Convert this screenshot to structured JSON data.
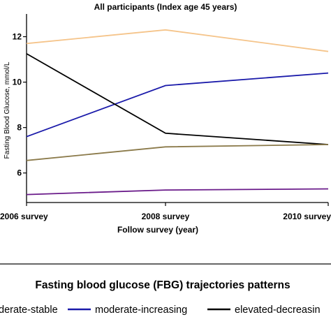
{
  "chart_data": {
    "type": "line",
    "title": "All participants (Index age 45 years)",
    "xlabel": "Follow survey (year)",
    "ylabel": "Fasting Blood Glucose, mmol/L",
    "x": [
      "2006 survey",
      "2008 survey",
      "2010 survey"
    ],
    "ylim": [
      4.7,
      13
    ],
    "yticks": [
      6,
      8,
      10,
      12
    ],
    "grid": false,
    "legend_title": "Fasting blood glucose (FBG) trajectories patterns",
    "legend_placement": "bottom",
    "series": [
      {
        "name": "",
        "color": "#f5c48a",
        "values": [
          11.7,
          12.3,
          11.35
        ]
      },
      {
        "name": "moderate-increasing",
        "color": "#1a1aaa",
        "values": [
          7.6,
          9.85,
          10.4
        ]
      },
      {
        "name": "elevated-decreasing",
        "color": "#000000",
        "values": [
          11.25,
          7.75,
          7.25
        ]
      },
      {
        "name": "",
        "color": "#8b7a4a",
        "values": [
          6.55,
          7.15,
          7.25
        ]
      },
      {
        "name": "",
        "color": "#6a1b8a",
        "values": [
          5.05,
          5.25,
          5.3
        ]
      }
    ],
    "legend_items": [
      {
        "label": "derate-stable",
        "color": "#8b7a4a"
      },
      {
        "label": "moderate-increasing",
        "color": "#1a1aaa"
      },
      {
        "label": "elevated-decreasin",
        "color": "#000000"
      }
    ]
  }
}
